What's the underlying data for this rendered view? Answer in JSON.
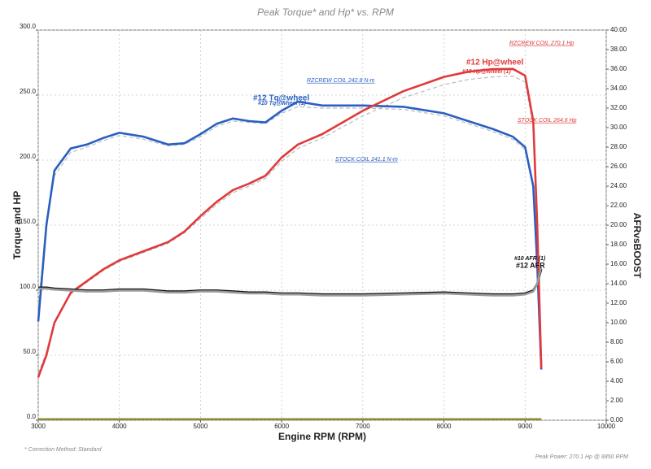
{
  "chart_data": {
    "type": "line",
    "title": "Peak Torque* and Hp* vs. RPM",
    "x_label": "Engine RPM (RPM)",
    "y_label": "Torque and HP",
    "y2_label": "AFRvsBOOST",
    "footnote": "* Correction Method: Standard",
    "peak_power": "Peak Power: 270.1 Hp @ 8850 RPM",
    "annotations": [
      "RZCREW COIL 242.8 N-m",
      "STOCK COIL 241.1 N-m",
      "RZCREW COIL 270.1 Hp",
      "STOCK COIL 264.6 Hp"
    ],
    "grid": true,
    "xlim": [
      3000,
      10000
    ],
    "xticks": [
      3000,
      4000,
      5000,
      6000,
      7000,
      8000,
      9000,
      10000
    ],
    "ylim": [
      0,
      300
    ],
    "yticks": [
      {
        "value": 0,
        "label": "0.0"
      },
      {
        "value": 50,
        "label": "50.0"
      },
      {
        "value": 100,
        "label": "100.0"
      },
      {
        "value": 150,
        "label": "150.0"
      },
      {
        "value": 200,
        "label": "200.0"
      },
      {
        "value": 250,
        "label": "250.0"
      },
      {
        "value": 300,
        "label": "300.0"
      }
    ],
    "y2lim": [
      0,
      40
    ],
    "y2ticks": [
      {
        "value": 0,
        "label": "0.00"
      },
      {
        "value": 2,
        "label": "2.00"
      },
      {
        "value": 4,
        "label": "4.00"
      },
      {
        "value": 6,
        "label": "6.00"
      },
      {
        "value": 8,
        "label": "8.00"
      },
      {
        "value": 10,
        "label": "10.00"
      },
      {
        "value": 12,
        "label": "12.00"
      },
      {
        "value": 14,
        "label": "14.00"
      },
      {
        "value": 16,
        "label": "16.00"
      },
      {
        "value": 18,
        "label": "18.00"
      },
      {
        "value": 20,
        "label": "20.00"
      },
      {
        "value": 22,
        "label": "22.00"
      },
      {
        "value": 24,
        "label": "24.00"
      },
      {
        "value": 26,
        "label": "26.00"
      },
      {
        "value": 28,
        "label": "28.00"
      },
      {
        "value": 30,
        "label": "30.00"
      },
      {
        "value": 32,
        "label": "32.00"
      },
      {
        "value": 34,
        "label": "34.00"
      },
      {
        "value": 36,
        "label": "36.00"
      },
      {
        "value": 38,
        "label": "38.00"
      },
      {
        "value": 40,
        "label": "40.00"
      }
    ],
    "x": [
      3000,
      3100,
      3200,
      3400,
      3600,
      3800,
      4000,
      4300,
      4600,
      4800,
      5000,
      5200,
      5400,
      5600,
      5800,
      6000,
      6200,
      6500,
      7000,
      7500,
      8000,
      8300,
      8600,
      8850,
      9000,
      9100,
      9150,
      9200
    ],
    "series": [
      {
        "name": "#12 Tq@wheel",
        "color": "#2a5fc0",
        "values": [
          76,
          150,
          192,
          209,
          212,
          217,
          221,
          218,
          212,
          213,
          220,
          228,
          232,
          230,
          229,
          238,
          245,
          242,
          242,
          241,
          236,
          230,
          224,
          218,
          210,
          180,
          120,
          39
        ]
      },
      {
        "name": "#10 Tq@wheel (1)",
        "color": "#b8bcc4",
        "dashed": true,
        "values": [
          88,
          150,
          188,
          206,
          210,
          215,
          219,
          216,
          211,
          212,
          218,
          226,
          230,
          229,
          228,
          236,
          241,
          240,
          240,
          239,
          234,
          228,
          222,
          216,
          208,
          178,
          120,
          40
        ]
      },
      {
        "name": "#12 Hp@wheel",
        "color": "#e03a3a",
        "values": [
          33,
          50,
          75,
          98,
          107,
          116,
          123,
          130,
          137,
          145,
          157,
          168,
          177,
          182,
          188,
          202,
          212,
          220,
          238,
          253,
          264,
          268,
          270,
          270.1,
          265,
          230,
          150,
          40
        ]
      },
      {
        "name": "#10 Hp@wheel (1)",
        "color": "#b8bcc4",
        "dashed": true,
        "values": [
          36,
          52,
          76,
          97,
          106,
          115,
          122,
          129,
          136,
          144,
          155,
          166,
          175,
          180,
          186,
          199,
          209,
          217,
          234,
          248,
          258,
          262,
          264,
          264.6,
          260,
          226,
          150,
          42
        ]
      },
      {
        "name": "#12 AFR",
        "color": "#111111",
        "axis": "y2",
        "values": [
          13.6,
          13.6,
          13.5,
          13.4,
          13.3,
          13.3,
          13.4,
          13.4,
          13.2,
          13.2,
          13.3,
          13.3,
          13.2,
          13.1,
          13.1,
          13.0,
          13.0,
          12.9,
          12.9,
          13.0,
          13.1,
          13.0,
          12.9,
          12.9,
          13.0,
          13.3,
          14.0,
          15.5
        ]
      },
      {
        "name": "#10 AFR (1)",
        "color": "#9a9a9a",
        "axis": "y2",
        "values": [
          13.5,
          13.5,
          13.4,
          13.3,
          13.2,
          13.2,
          13.3,
          13.3,
          13.1,
          13.1,
          13.2,
          13.2,
          13.1,
          13.0,
          13.0,
          12.9,
          12.9,
          12.8,
          12.8,
          12.9,
          13.0,
          12.9,
          12.8,
          12.8,
          12.9,
          13.2,
          14.0,
          15.8
        ]
      },
      {
        "color": "#8a8a3a",
        "axis": "y2",
        "values": [
          0.1,
          0.1,
          0.1,
          0.1,
          0.1,
          0.1,
          0.1,
          0.1,
          0.1,
          0.1,
          0.1,
          0.1,
          0.1,
          0.1,
          0.1,
          0.1,
          0.1,
          0.1,
          0.1,
          0.1,
          0.1,
          0.1,
          0.1,
          0.1,
          0.1,
          0.1,
          0.1,
          0.1
        ]
      }
    ]
  }
}
